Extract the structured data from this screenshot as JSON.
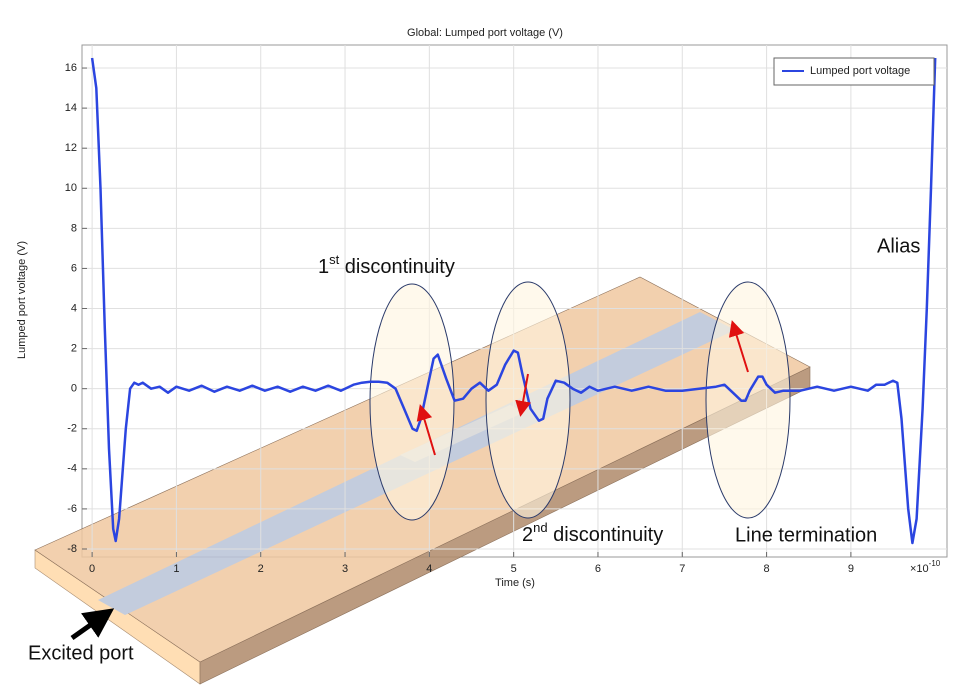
{
  "chart_data": {
    "type": "line",
    "title": "Global: Lumped port voltage (V)",
    "xlabel": "Time (s)",
    "ylabel": "Lumped port voltage (V)",
    "x_scale_base": "×10",
    "x_scale_exponent": "-10",
    "xlim": [
      -0.12,
      10.14
    ],
    "ylim": [
      -8.4,
      17.15
    ],
    "xticks": [
      0,
      1,
      2,
      3,
      4,
      5,
      6,
      7,
      8,
      9
    ],
    "yticks": [
      -8,
      -6,
      -4,
      -2,
      0,
      2,
      4,
      6,
      8,
      10,
      12,
      14,
      16
    ],
    "grid": true,
    "legend_position": "upper right",
    "x": [
      0,
      0.05,
      0.1,
      0.15,
      0.2,
      0.25,
      0.28,
      0.32,
      0.4,
      0.45,
      0.5,
      0.55,
      0.6,
      0.7,
      0.8,
      0.9,
      1.0,
      1.15,
      1.3,
      1.45,
      1.6,
      1.75,
      1.9,
      2.05,
      2.2,
      2.35,
      2.5,
      2.65,
      2.8,
      2.95,
      3.1,
      3.2,
      3.3,
      3.4,
      3.5,
      3.6,
      3.7,
      3.8,
      3.85,
      3.9,
      4.0,
      4.05,
      4.1,
      4.2,
      4.3,
      4.4,
      4.5,
      4.6,
      4.7,
      4.8,
      4.9,
      5.0,
      5.05,
      5.1,
      5.2,
      5.3,
      5.35,
      5.4,
      5.5,
      5.6,
      5.7,
      5.8,
      5.9,
      6.0,
      6.2,
      6.4,
      6.6,
      6.8,
      7.0,
      7.2,
      7.4,
      7.5,
      7.6,
      7.7,
      7.75,
      7.8,
      7.9,
      7.95,
      8.0,
      8.1,
      8.2,
      8.4,
      8.6,
      8.8,
      9.0,
      9.2,
      9.3,
      9.4,
      9.5,
      9.55,
      9.6,
      9.68,
      9.73,
      9.78,
      9.85,
      9.9,
      9.95,
      10.0
    ],
    "series": [
      {
        "name": "Lumped port voltage",
        "color": "#2b45e0",
        "values": [
          16.5,
          15,
          10,
          3,
          -3,
          -7,
          -7.6,
          -6.5,
          -2,
          0,
          0.3,
          0.2,
          0.3,
          0,
          0.1,
          -0.2,
          0.1,
          -0.1,
          0.15,
          -0.15,
          0.1,
          -0.1,
          0.15,
          -0.1,
          0.1,
          -0.15,
          0.1,
          -0.1,
          0.15,
          -0.1,
          0.2,
          0.3,
          0.35,
          0.35,
          0.3,
          0,
          -1,
          -2,
          -2.1,
          -1.5,
          0.5,
          1.5,
          1.7,
          0.5,
          -0.6,
          -0.5,
          0,
          0.3,
          -0.1,
          0.2,
          1.2,
          1.9,
          1.8,
          0.8,
          -1,
          -1.6,
          -1.5,
          -0.5,
          0.4,
          0.3,
          0,
          -0.2,
          0.1,
          -0.1,
          0.1,
          -0.1,
          0.1,
          -0.1,
          -0.1,
          0,
          0.1,
          0.2,
          -0.2,
          -0.6,
          -0.6,
          -0.1,
          0.6,
          0.6,
          0.2,
          -0.2,
          -0.1,
          -0.1,
          0.1,
          -0.1,
          0.1,
          -0.1,
          0.2,
          0.2,
          0.4,
          0.3,
          -1.5,
          -6,
          -7.7,
          -6.5,
          -1,
          4,
          10,
          16.5
        ]
      }
    ],
    "annotations": [
      {
        "lead": "1",
        "sup": "st",
        "rest": " discontinuity"
      },
      {
        "lead": "2",
        "sup": "nd",
        "rest": " discontinuity"
      },
      {
        "lead": "Line termination"
      },
      {
        "lead": "Alias"
      },
      {
        "lead": "Excited port"
      }
    ]
  }
}
